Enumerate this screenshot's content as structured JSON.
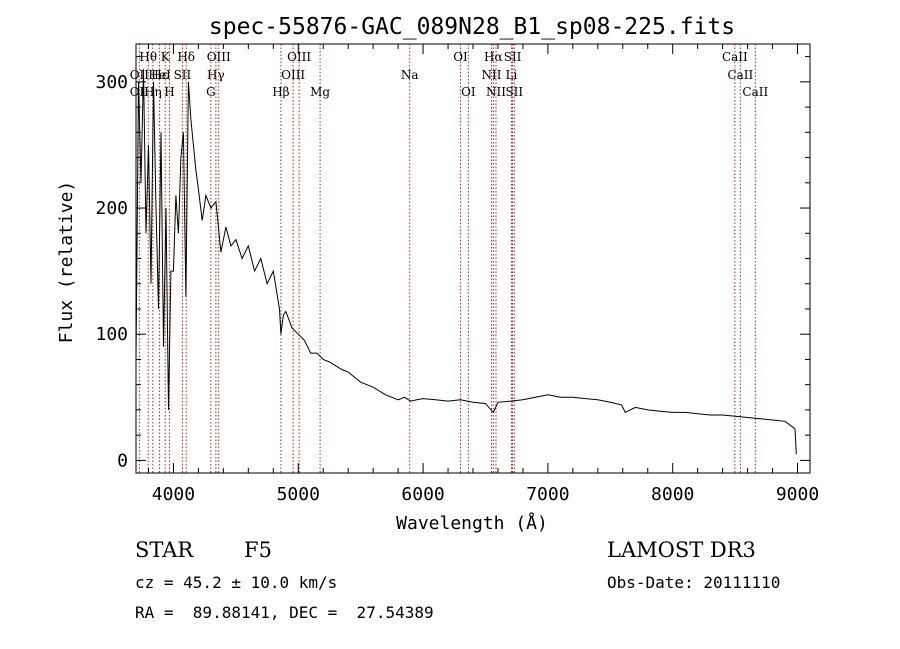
{
  "chart_data": {
    "type": "line",
    "title": "spec-55876-GAC_089N28_B1_sp08-225.fits",
    "xlabel": "Wavelength (Å)",
    "ylabel": "Flux (relative)",
    "xlim": [
      3700,
      9100
    ],
    "ylim": [
      -10,
      330
    ],
    "xticks": [
      4000,
      5000,
      6000,
      7000,
      8000,
      9000
    ],
    "yticks": [
      0,
      100,
      200,
      300
    ],
    "series": [
      {
        "name": "spectrum",
        "x": [
          3700,
          3720,
          3740,
          3760,
          3780,
          3800,
          3820,
          3840,
          3860,
          3880,
          3900,
          3920,
          3940,
          3960,
          3980,
          4000,
          4020,
          4040,
          4060,
          4080,
          4100,
          4120,
          4140,
          4160,
          4180,
          4200,
          4230,
          4260,
          4300,
          4340,
          4380,
          4420,
          4460,
          4500,
          4550,
          4600,
          4650,
          4700,
          4750,
          4800,
          4850,
          4861,
          4880,
          4900,
          4950,
          5000,
          5050,
          5100,
          5150,
          5200,
          5250,
          5300,
          5350,
          5400,
          5450,
          5500,
          5550,
          5600,
          5650,
          5700,
          5750,
          5800,
          5850,
          5900,
          5950,
          6000,
          6100,
          6200,
          6300,
          6400,
          6500,
          6563,
          6600,
          6700,
          6800,
          6900,
          7000,
          7100,
          7200,
          7300,
          7400,
          7500,
          7590,
          7620,
          7700,
          7800,
          7900,
          8000,
          8100,
          8200,
          8300,
          8400,
          8500,
          8600,
          8700,
          8800,
          8900,
          8980,
          8990
        ],
        "y": [
          80,
          300,
          220,
          310,
          180,
          250,
          140,
          300,
          200,
          120,
          260,
          90,
          200,
          40,
          150,
          150,
          210,
          180,
          240,
          260,
          130,
          300,
          270,
          250,
          230,
          215,
          190,
          210,
          200,
          205,
          165,
          185,
          170,
          175,
          160,
          170,
          150,
          160,
          140,
          150,
          120,
          100,
          115,
          118,
          105,
          100,
          95,
          85,
          85,
          80,
          78,
          75,
          72,
          70,
          66,
          62,
          60,
          58,
          55,
          52,
          50,
          48,
          50,
          47,
          48,
          49,
          48,
          47,
          48,
          46,
          45,
          38,
          46,
          47,
          48,
          50,
          52,
          50,
          50,
          49,
          48,
          46,
          44,
          38,
          42,
          40,
          39,
          38,
          38,
          37,
          36,
          36,
          35,
          34,
          33,
          32,
          31,
          25,
          5
        ]
      }
    ],
    "line_markers": [
      {
        "label": "Hθ",
        "wave": 3798,
        "row": 0
      },
      {
        "label": "K",
        "wave": 3934,
        "row": 0
      },
      {
        "label": "Hδ",
        "wave": 4102,
        "row": 0
      },
      {
        "label": "OIII",
        "wave": 4363,
        "row": 0
      },
      {
        "label": "OIII",
        "wave": 5007,
        "row": 0
      },
      {
        "label": "OI",
        "wave": 6300,
        "row": 0
      },
      {
        "label": "Hα",
        "wave": 6563,
        "row": 0
      },
      {
        "label": "SII",
        "wave": 6717,
        "row": 0
      },
      {
        "label": "CaII",
        "wave": 8498,
        "row": 0
      },
      {
        "label": "OII",
        "wave": 3727,
        "row": 1
      },
      {
        "label": "Hε",
        "wave": 3889,
        "row": 1
      },
      {
        "label": "HeI",
        "wave": 3889,
        "row": 1
      },
      {
        "label": "SII",
        "wave": 4072,
        "row": 1
      },
      {
        "label": "Hγ",
        "wave": 4340,
        "row": 1
      },
      {
        "label": "OIII",
        "wave": 4959,
        "row": 1
      },
      {
        "label": "Na",
        "wave": 5893,
        "row": 1
      },
      {
        "label": "NII",
        "wave": 6548,
        "row": 1
      },
      {
        "label": "Li",
        "wave": 6708,
        "row": 1
      },
      {
        "label": "CaII",
        "wave": 8542,
        "row": 1
      },
      {
        "label": "OII",
        "wave": 3727,
        "row": 2
      },
      {
        "label": "Hη",
        "wave": 3835,
        "row": 2
      },
      {
        "label": "H",
        "wave": 3968,
        "row": 2
      },
      {
        "label": "G",
        "wave": 4300,
        "row": 2
      },
      {
        "label": "Hβ",
        "wave": 4861,
        "row": 2
      },
      {
        "label": "Mg",
        "wave": 5175,
        "row": 2
      },
      {
        "label": "OI",
        "wave": 6363,
        "row": 2
      },
      {
        "label": "NII",
        "wave": 6584,
        "row": 2
      },
      {
        "label": "SII",
        "wave": 6731,
        "row": 2
      },
      {
        "label": "CaII",
        "wave": 8662,
        "row": 2
      }
    ],
    "colors": {
      "spectrum": "#000000",
      "marker_line": "#b22222",
      "axes": "#000000"
    }
  },
  "info": {
    "object_class": "STAR",
    "subclass": "F5",
    "survey": "LAMOST DR3",
    "cz": "cz = 45.2 ± 10.0 km/s",
    "obs_date": "Obs-Date: 20111110",
    "coords": "RA =  89.88141, DEC =  27.54389"
  }
}
